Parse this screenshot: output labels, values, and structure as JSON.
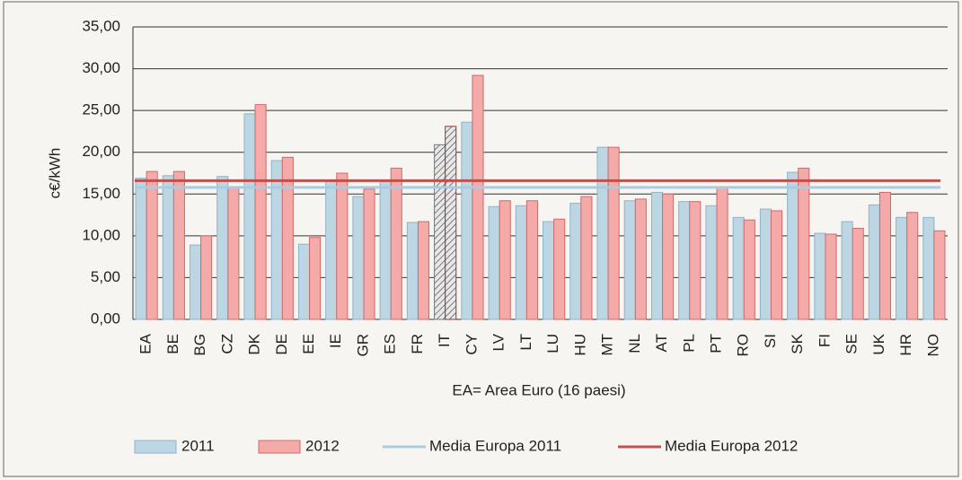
{
  "chart_data": {
    "type": "bar",
    "y_label": "c€/kWh",
    "x_label": "EA= Area Euro (16 paesi)",
    "categories": [
      "EA",
      "BE",
      "BG",
      "CZ",
      "DK",
      "DE",
      "EE",
      "IE",
      "GR",
      "ES",
      "FR",
      "IT",
      "CY",
      "LV",
      "LT",
      "LU",
      "HU",
      "MT",
      "NL",
      "AT",
      "PL",
      "PT",
      "RO",
      "SI",
      "SK",
      "FI",
      "SE",
      "UK",
      "HR",
      "NO"
    ],
    "series": [
      {
        "name": "2011",
        "color": "#bcd6e4",
        "stroke": "#8fb3c8",
        "values": [
          16.9,
          17.2,
          8.9,
          17.1,
          24.6,
          19.0,
          9.0,
          16.5,
          14.7,
          16.6,
          11.6,
          20.9,
          23.6,
          13.5,
          13.6,
          11.7,
          13.9,
          20.6,
          14.2,
          15.2,
          14.1,
          13.6,
          12.2,
          13.2,
          17.6,
          10.3,
          11.7,
          13.7,
          12.2,
          12.2
        ]
      },
      {
        "name": "2012",
        "color": "#f4aaa8",
        "stroke": "#d06a68",
        "values": [
          17.7,
          17.7,
          10.0,
          15.8,
          25.7,
          19.4,
          9.8,
          17.5,
          15.6,
          18.1,
          11.7,
          23.1,
          29.2,
          14.2,
          14.2,
          12.0,
          14.7,
          20.6,
          14.4,
          15.0,
          14.1,
          15.8,
          11.9,
          13.0,
          18.1,
          10.2,
          10.9,
          15.2,
          12.8,
          10.6
        ]
      }
    ],
    "reference_lines": [
      {
        "name": "Media Europa 2011",
        "color": "#a9cde0",
        "value": 15.8
      },
      {
        "name": "Media Europa 2012",
        "color": "#c0504d",
        "value": 16.6
      }
    ],
    "highlight_index": 11,
    "ylim": [
      0,
      35
    ],
    "yticks": [
      {
        "value": 0,
        "label": "0,00"
      },
      {
        "value": 5,
        "label": "5,00"
      },
      {
        "value": 10,
        "label": "10,00"
      },
      {
        "value": 15,
        "label": "15,00"
      },
      {
        "value": 20,
        "label": "20,00"
      },
      {
        "value": 25,
        "label": "25,00"
      },
      {
        "value": 30,
        "label": "30,00"
      },
      {
        "value": 35,
        "label": "35,00"
      }
    ],
    "grid": true
  }
}
